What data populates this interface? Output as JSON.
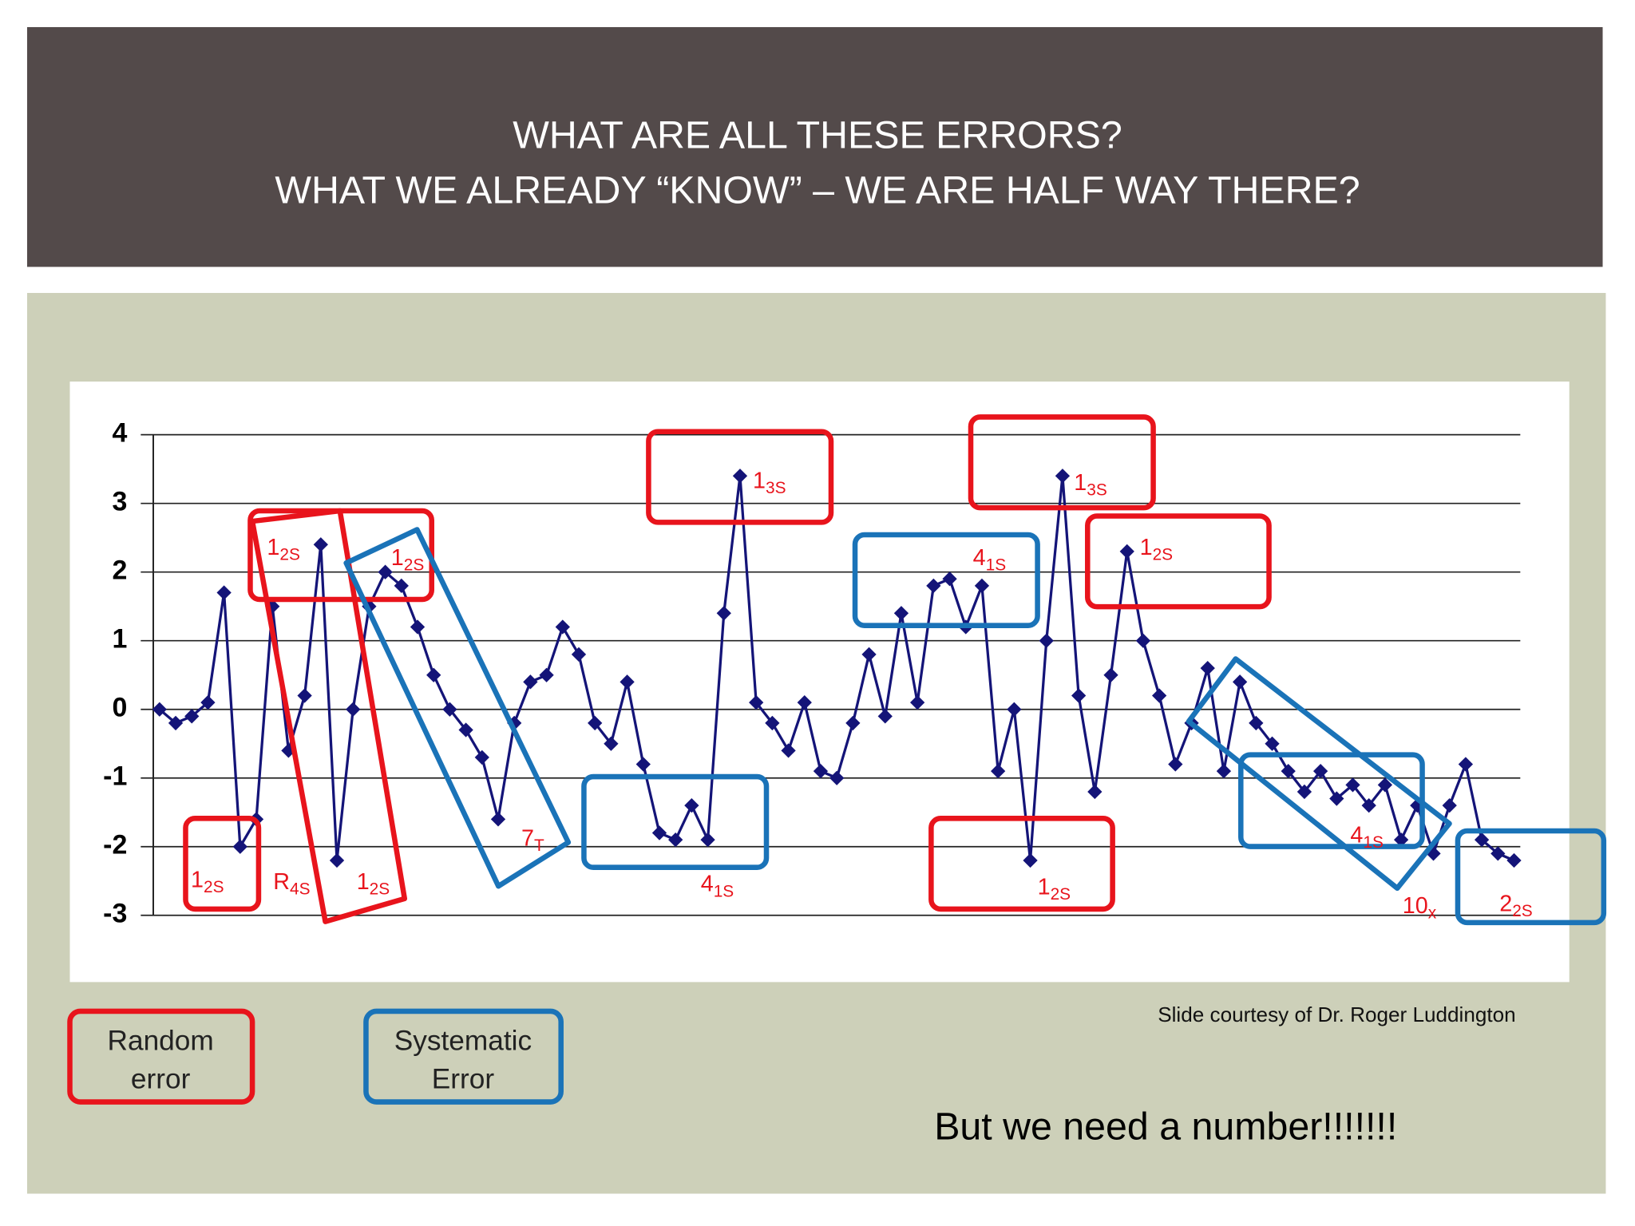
{
  "title_lines": [
    "WHAT ARE ALL THESE ERRORS?",
    "WHAT WE ALREADY “KNOW” – WE ARE HALF WAY THERE?"
  ],
  "chart_data": {
    "type": "line",
    "color": "#141478",
    "grid": true,
    "ylim": [
      -3,
      4
    ],
    "yticks": [
      -3,
      -2,
      -1,
      0,
      1,
      2,
      3,
      4
    ],
    "values": [
      0,
      -0.2,
      -0.1,
      0.1,
      1.7,
      -2.0,
      -1.6,
      1.5,
      -0.6,
      0.2,
      2.4,
      -2.2,
      0,
      1.5,
      2.0,
      1.8,
      1.2,
      0.5,
      0,
      -0.3,
      -0.7,
      -1.6,
      -0.2,
      0.4,
      0.5,
      1.2,
      0.8,
      -0.2,
      -0.5,
      0.4,
      -0.8,
      -1.8,
      -1.9,
      -1.4,
      -1.9,
      1.4,
      3.4,
      0.1,
      -0.2,
      -0.6,
      0.1,
      -0.9,
      -1.0,
      -0.2,
      0.8,
      -0.1,
      1.4,
      0.1,
      1.8,
      1.9,
      1.2,
      1.8,
      -0.9,
      0,
      -2.2,
      1.0,
      3.4,
      0.2,
      -1.2,
      0.5,
      2.3,
      1.0,
      0.2,
      -0.8,
      -0.2,
      0.6,
      -0.9,
      0.4,
      -0.2,
      -0.5,
      -0.9,
      -1.2,
      -0.9,
      -1.3,
      -1.1,
      -1.4,
      -1.1,
      -1.9,
      -1.4,
      -2.1,
      -1.4,
      -0.8,
      -1.9,
      -2.1,
      -2.2
    ]
  },
  "annotations": [
    {
      "main": "1",
      "sub": "2S"
    },
    {
      "main": "R",
      "sub": "4S"
    },
    {
      "main": "1",
      "sub": "2S"
    },
    {
      "main": "1",
      "sub": "2S"
    },
    {
      "main": "1",
      "sub": "2S"
    },
    {
      "main": "7",
      "sub": "T"
    },
    {
      "main": "1",
      "sub": "3S"
    },
    {
      "main": "4",
      "sub": "1S"
    },
    {
      "main": "4",
      "sub": "1S"
    },
    {
      "main": "1",
      "sub": "3S"
    },
    {
      "main": "1",
      "sub": "2S"
    },
    {
      "main": "1",
      "sub": "2S"
    },
    {
      "main": "4",
      "sub": "1S"
    },
    {
      "main": "10",
      "sub": "x"
    },
    {
      "main": "2",
      "sub": "2S"
    }
  ],
  "legend": [
    {
      "label_lines": [
        "Random",
        "error"
      ]
    },
    {
      "label_lines": [
        "Systematic",
        "Error"
      ]
    }
  ],
  "credit": "Slide courtesy of Dr. Roger Luddington",
  "footer": "But we need a number!!!!!!!"
}
